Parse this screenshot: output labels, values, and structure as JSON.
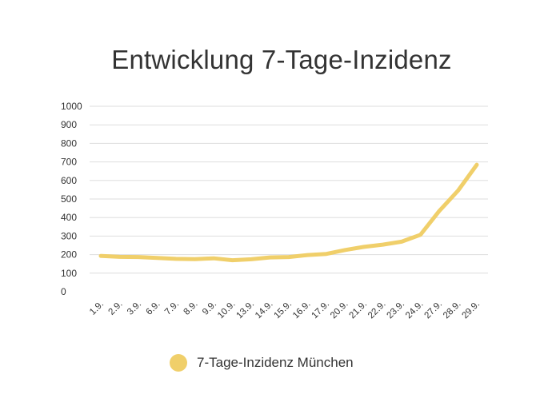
{
  "chart_data": {
    "type": "line",
    "title": "Entwicklung 7-Tage-Inzidenz",
    "xlabel": "",
    "ylabel": "",
    "ylim": [
      0,
      1000
    ],
    "yticks": [
      "0",
      "100",
      "200",
      "300",
      "400",
      "500",
      "600",
      "700",
      "800",
      "900",
      "1000"
    ],
    "categories": [
      "1.9.",
      "2.9.",
      "3.9.",
      "6.9.",
      "7.9.",
      "8.9.",
      "9.9.",
      "10.9.",
      "13.9.",
      "14.9.",
      "15.9.",
      "16.9.",
      "17.9.",
      "20.9.",
      "21.9.",
      "22.9.",
      "23.9.",
      "24.9.",
      "27.9.",
      "28.9.",
      "29.9."
    ],
    "series": [
      {
        "name": "7-Tage-Inzidenz München",
        "color": "#f0cf6a",
        "values": [
          193,
          188,
          187,
          182,
          177,
          176,
          180,
          170,
          175,
          185,
          187,
          198,
          204,
          225,
          242,
          254,
          270,
          307,
          435,
          545,
          685
        ]
      }
    ],
    "grid": true,
    "legend": "bottom-center"
  }
}
